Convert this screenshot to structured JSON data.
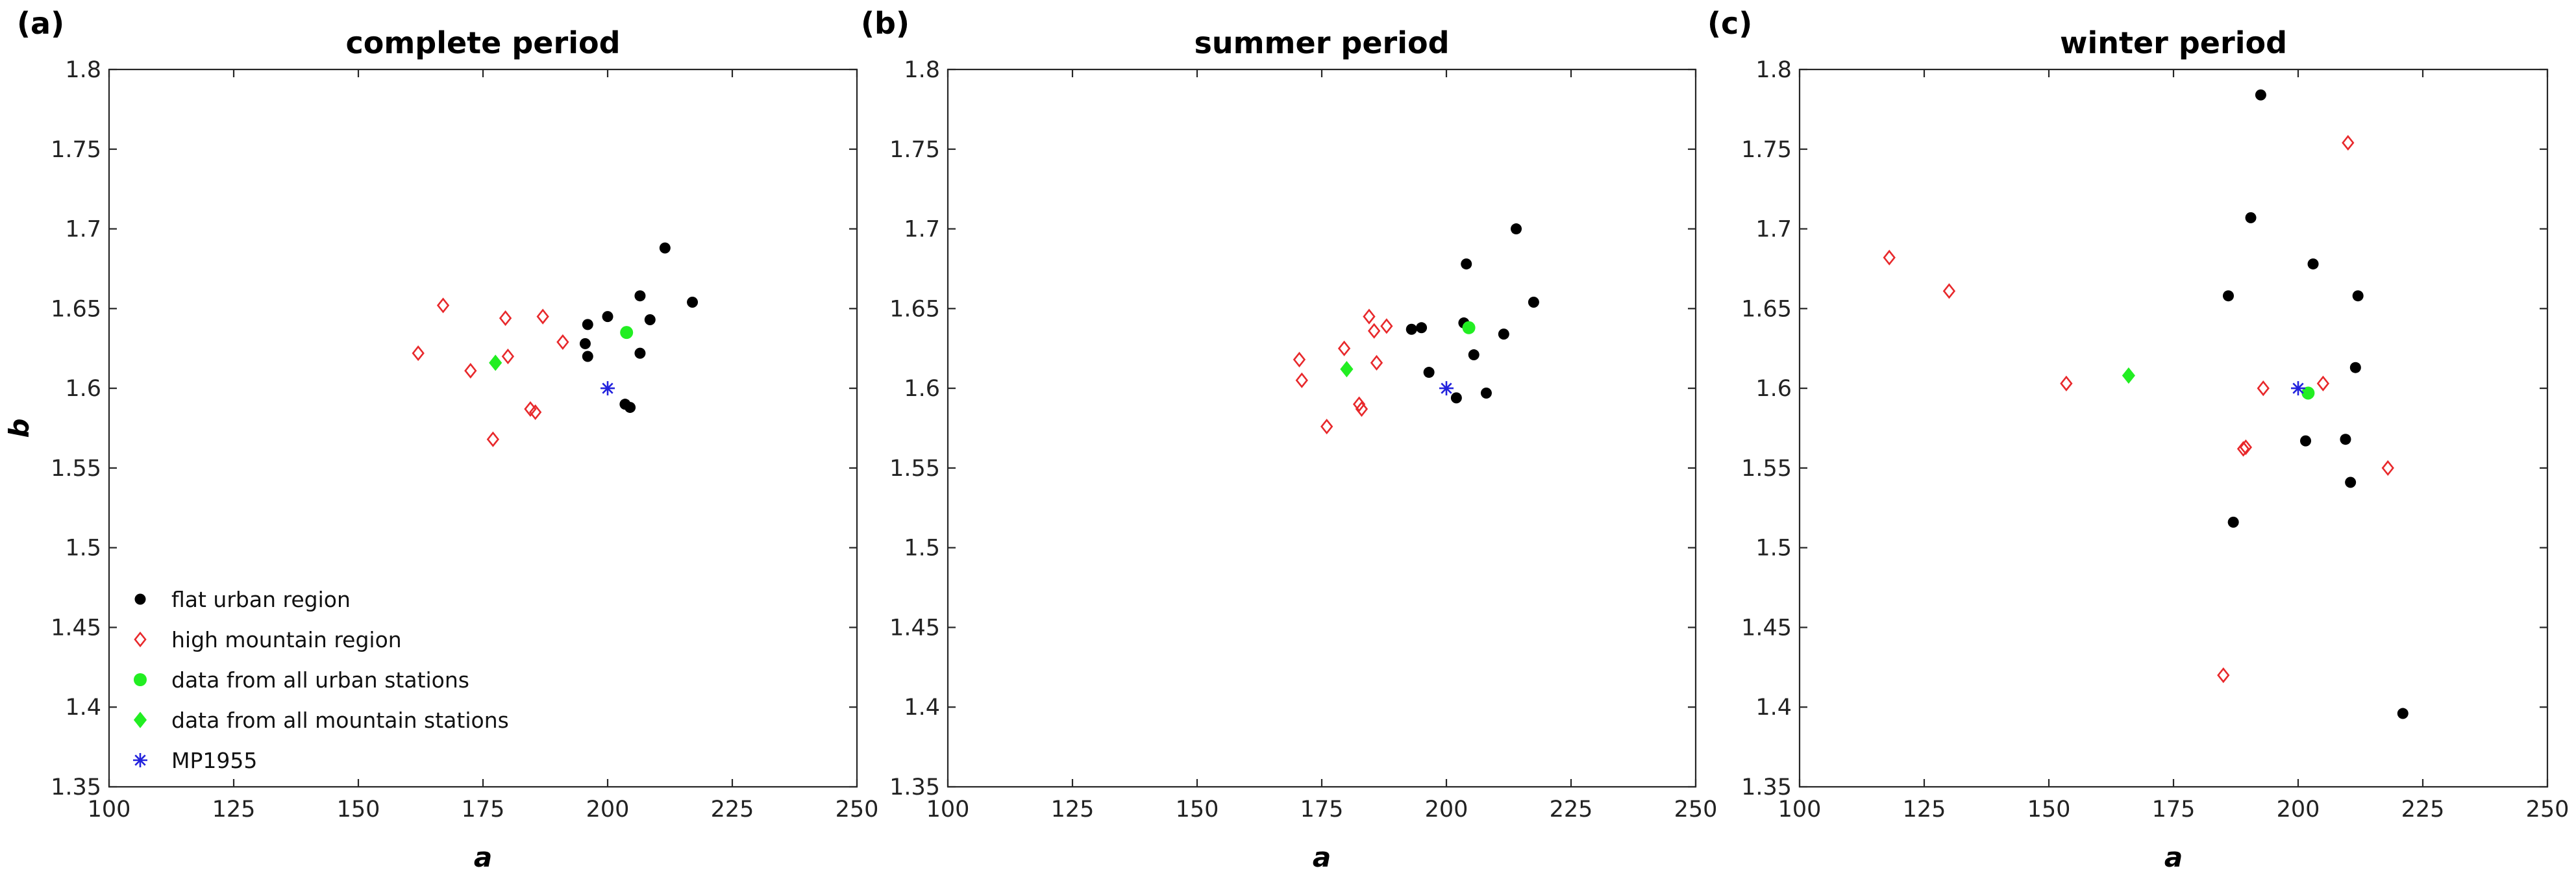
{
  "chart_data": [
    {
      "type": "scatter",
      "panel_label": "(a)",
      "title": "complete period",
      "xlabel": "a",
      "ylabel": "b",
      "xlim": [
        100,
        250
      ],
      "ylim": [
        1.35,
        1.8
      ],
      "xticks": [
        100,
        125,
        150,
        175,
        200,
        225,
        250
      ],
      "yticks": [
        1.35,
        1.4,
        1.45,
        1.5,
        1.55,
        1.6,
        1.65,
        1.7,
        1.75,
        1.8
      ],
      "grid": false,
      "legend": "bottom-left",
      "series": [
        {
          "name": "flat urban region",
          "marker": "dot",
          "color": "#000000",
          "points": [
            [
              196,
              1.64
            ],
            [
              200,
              1.645
            ],
            [
              195.5,
              1.628
            ],
            [
              196,
              1.62
            ],
            [
              203.5,
              1.59
            ],
            [
              204.5,
              1.588
            ],
            [
              206.5,
              1.622
            ],
            [
              206.5,
              1.658
            ],
            [
              208.5,
              1.643
            ],
            [
              211.5,
              1.688
            ],
            [
              217,
              1.654
            ]
          ]
        },
        {
          "name": "high mountain region",
          "marker": "diamond",
          "color": "#e8282b",
          "points": [
            [
              162,
              1.622
            ],
            [
              167,
              1.652
            ],
            [
              172.5,
              1.611
            ],
            [
              177,
              1.568
            ],
            [
              179.5,
              1.644
            ],
            [
              180,
              1.62
            ],
            [
              184.5,
              1.587
            ],
            [
              185.5,
              1.585
            ],
            [
              187,
              1.645
            ],
            [
              191,
              1.629
            ]
          ]
        },
        {
          "name": "data from all urban stations",
          "marker": "dot-filled",
          "color": "#22ee22",
          "points": [
            [
              203.8,
              1.635
            ]
          ]
        },
        {
          "name": "data from all mountain stations",
          "marker": "diamond-filled",
          "color": "#22ee22",
          "points": [
            [
              177.5,
              1.616
            ]
          ]
        },
        {
          "name": "MP1955",
          "marker": "asterisk",
          "color": "#2222dd",
          "points": [
            [
              200,
              1.6
            ]
          ]
        }
      ]
    },
    {
      "type": "scatter",
      "panel_label": "(b)",
      "title": "summer period",
      "xlabel": "a",
      "ylabel": "",
      "xlim": [
        100,
        250
      ],
      "ylim": [
        1.35,
        1.8
      ],
      "xticks": [
        100,
        125,
        150,
        175,
        200,
        225,
        250
      ],
      "yticks": [
        1.35,
        1.4,
        1.45,
        1.5,
        1.55,
        1.6,
        1.65,
        1.7,
        1.75,
        1.8
      ],
      "grid": false,
      "legend": "none",
      "series": [
        {
          "name": "flat urban region",
          "marker": "dot",
          "color": "#000000",
          "points": [
            [
              193,
              1.637
            ],
            [
              195,
              1.638
            ],
            [
              196.5,
              1.61
            ],
            [
              202,
              1.594
            ],
            [
              203.5,
              1.641
            ],
            [
              204,
              1.678
            ],
            [
              205.5,
              1.621
            ],
            [
              208,
              1.597
            ],
            [
              211.5,
              1.634
            ],
            [
              214,
              1.7
            ],
            [
              217.5,
              1.654
            ]
          ]
        },
        {
          "name": "high mountain region",
          "marker": "diamond",
          "color": "#e8282b",
          "points": [
            [
              170.5,
              1.618
            ],
            [
              171,
              1.605
            ],
            [
              176,
              1.576
            ],
            [
              179.5,
              1.625
            ],
            [
              182.5,
              1.59
            ],
            [
              183,
              1.587
            ],
            [
              184.5,
              1.645
            ],
            [
              185.5,
              1.636
            ],
            [
              186,
              1.616
            ],
            [
              188,
              1.639
            ]
          ]
        },
        {
          "name": "data from all urban stations",
          "marker": "dot-filled",
          "color": "#22ee22",
          "points": [
            [
              204.5,
              1.638
            ]
          ]
        },
        {
          "name": "data from all mountain stations",
          "marker": "diamond-filled",
          "color": "#22ee22",
          "points": [
            [
              180,
              1.612
            ]
          ]
        },
        {
          "name": "MP1955",
          "marker": "asterisk",
          "color": "#2222dd",
          "points": [
            [
              200,
              1.6
            ]
          ]
        }
      ]
    },
    {
      "type": "scatter",
      "panel_label": "(c)",
      "title": "winter period",
      "xlabel": "a",
      "ylabel": "",
      "xlim": [
        100,
        250
      ],
      "ylim": [
        1.35,
        1.8
      ],
      "xticks": [
        100,
        125,
        150,
        175,
        200,
        225,
        250
      ],
      "yticks": [
        1.35,
        1.4,
        1.45,
        1.5,
        1.55,
        1.6,
        1.65,
        1.7,
        1.75,
        1.8
      ],
      "grid": false,
      "legend": "none",
      "series": [
        {
          "name": "flat urban region",
          "marker": "dot",
          "color": "#000000",
          "points": [
            [
              186,
              1.658
            ],
            [
              187,
              1.516
            ],
            [
              190.5,
              1.707
            ],
            [
              192.5,
              1.784
            ],
            [
              201.5,
              1.567
            ],
            [
              203,
              1.678
            ],
            [
              209.5,
              1.568
            ],
            [
              210.5,
              1.541
            ],
            [
              211.5,
              1.613
            ],
            [
              212,
              1.658
            ],
            [
              221,
              1.396
            ]
          ]
        },
        {
          "name": "high mountain region",
          "marker": "diamond",
          "color": "#e8282b",
          "points": [
            [
              118,
              1.682
            ],
            [
              130,
              1.661
            ],
            [
              153.5,
              1.603
            ],
            [
              185,
              1.42
            ],
            [
              189,
              1.562
            ],
            [
              189.5,
              1.563
            ],
            [
              193,
              1.6
            ],
            [
              205,
              1.603
            ],
            [
              210,
              1.754
            ],
            [
              218,
              1.55
            ]
          ]
        },
        {
          "name": "data from all urban stations",
          "marker": "dot-filled",
          "color": "#22ee22",
          "points": [
            [
              202,
              1.597
            ]
          ]
        },
        {
          "name": "data from all mountain stations",
          "marker": "diamond-filled",
          "color": "#22ee22",
          "points": [
            [
              166,
              1.608
            ]
          ]
        },
        {
          "name": "MP1955",
          "marker": "asterisk",
          "color": "#2222dd",
          "points": [
            [
              200,
              1.6
            ]
          ]
        }
      ]
    }
  ]
}
